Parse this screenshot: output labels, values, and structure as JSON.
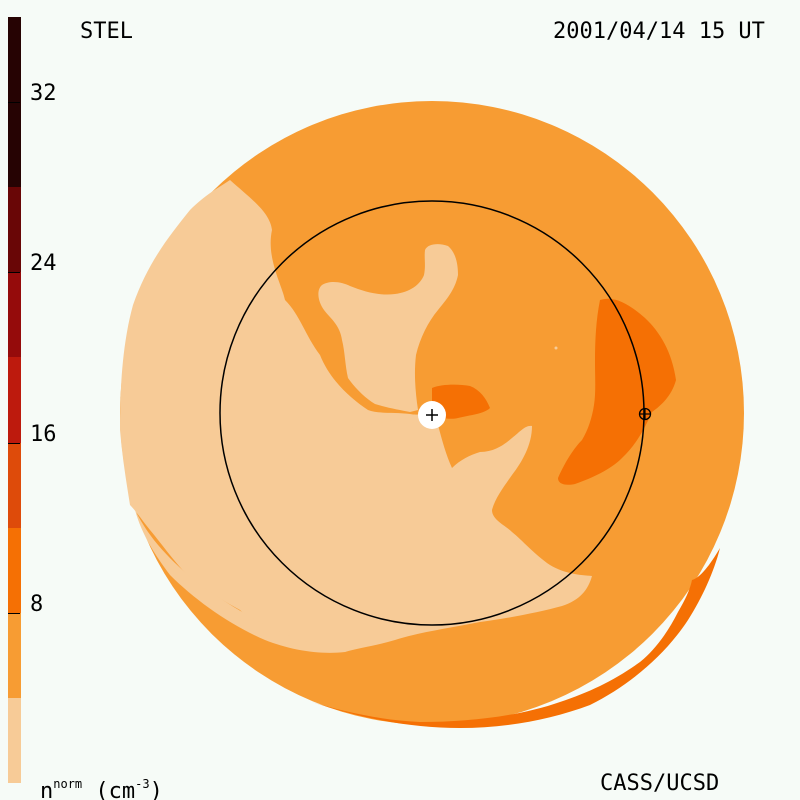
{
  "header": {
    "label_left": "STEL",
    "timestamp": "2001/04/14 15 UT"
  },
  "footer": {
    "units_n": "n",
    "units_sup": "norm",
    "units_rest": " (cm",
    "units_exp": "-3",
    "units_close": ")",
    "credit": "CASS/UCSD"
  },
  "colorbar": {
    "levels": [
      {
        "from": 0,
        "to": 4,
        "color": "#f7cb97"
      },
      {
        "from": 4,
        "to": 8,
        "color": "#f79c33"
      },
      {
        "from": 8,
        "to": 12,
        "color": "#f57004"
      },
      {
        "from": 12,
        "to": 16,
        "color": "#de4b0a"
      },
      {
        "from": 16,
        "to": 20,
        "color": "#bd1a0d"
      },
      {
        "from": 20,
        "to": 24,
        "color": "#950b0b"
      },
      {
        "from": 24,
        "to": 28,
        "color": "#690606"
      },
      {
        "from": 28,
        "to": 36,
        "color": "#260303"
      }
    ],
    "min": 0,
    "max": 36,
    "tick_labels": [
      "8",
      "16",
      "24",
      "32"
    ],
    "tick_values": [
      8,
      16,
      24,
      32
    ]
  },
  "map": {
    "background_color": "#f79c33",
    "low_color": "#f7cb97",
    "high_color": "#f57004",
    "sun_marker": "sun-center-plus-icon",
    "earth_marker": "earth-circle-plus-icon"
  }
}
